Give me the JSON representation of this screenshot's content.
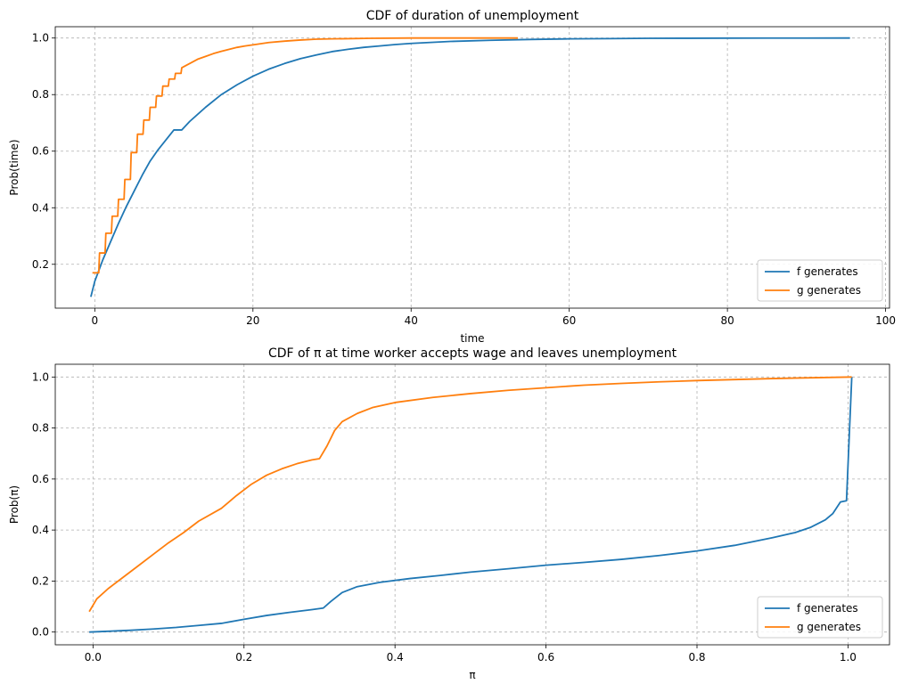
{
  "chart_data": [
    {
      "type": "line",
      "title": "CDF of duration of unemployment",
      "xlabel": "time",
      "ylabel": "Prob(time)",
      "xlim": [
        -5,
        100.5
      ],
      "ylim": [
        0.045,
        1.04
      ],
      "xticks": [
        0,
        20,
        40,
        60,
        80,
        100
      ],
      "yticks": [
        0.2,
        0.4,
        0.6,
        0.8,
        1.0
      ],
      "xtick_labels": [
        "0",
        "20",
        "40",
        "60",
        "80",
        "100"
      ],
      "ytick_labels": [
        "0.2",
        "0.4",
        "0.6",
        "0.8",
        "1.0"
      ],
      "grid": true,
      "legend": "lower-right",
      "series": [
        {
          "name": "f generates",
          "color": "#1f77b4",
          "x": [
            -0.5,
            0,
            1,
            2,
            3,
            4,
            5,
            6,
            7,
            8,
            9,
            10,
            11,
            12,
            14,
            16,
            18,
            20,
            22,
            24,
            26,
            28,
            30,
            32,
            34,
            36,
            38,
            40,
            45,
            50,
            55,
            60,
            65,
            70,
            75,
            80,
            85,
            90,
            95.5
          ],
          "y": [
            0.085,
            0.14,
            0.215,
            0.28,
            0.345,
            0.405,
            0.46,
            0.515,
            0.565,
            0.605,
            0.64,
            0.675,
            0.675,
            0.705,
            0.755,
            0.8,
            0.835,
            0.865,
            0.89,
            0.91,
            0.927,
            0.94,
            0.952,
            0.96,
            0.967,
            0.972,
            0.977,
            0.981,
            0.988,
            0.992,
            0.995,
            0.997,
            0.998,
            0.999,
            0.9993,
            0.9996,
            0.9998,
            0.9999,
            1.0
          ]
        },
        {
          "name": "g generates",
          "color": "#ff7f0e",
          "x": [
            -0.3,
            0.5,
            0.6,
            1.3,
            1.4,
            2.1,
            2.2,
            2.9,
            3.0,
            3.7,
            3.8,
            4.5,
            4.6,
            5.3,
            5.4,
            6.1,
            6.2,
            6.9,
            7.0,
            7.7,
            7.8,
            8.5,
            8.6,
            9.3,
            9.4,
            10.1,
            10.2,
            10.9,
            11.0,
            12,
            13,
            14,
            15,
            16,
            17,
            18,
            19,
            20,
            22,
            24,
            26,
            28,
            30,
            35,
            40,
            45,
            53.5
          ],
          "y": [
            0.17,
            0.17,
            0.24,
            0.24,
            0.31,
            0.31,
            0.37,
            0.37,
            0.43,
            0.43,
            0.5,
            0.5,
            0.595,
            0.595,
            0.66,
            0.66,
            0.71,
            0.71,
            0.755,
            0.755,
            0.795,
            0.795,
            0.83,
            0.83,
            0.855,
            0.855,
            0.875,
            0.875,
            0.895,
            0.91,
            0.925,
            0.935,
            0.945,
            0.953,
            0.96,
            0.967,
            0.972,
            0.976,
            0.984,
            0.989,
            0.993,
            0.996,
            0.997,
            0.999,
            1.0,
            1.0,
            1.0
          ]
        }
      ]
    },
    {
      "type": "line",
      "title": "CDF of π at time worker accepts wage and leaves unemployment",
      "xlabel": "π",
      "ylabel": "Prob(π)",
      "xlim": [
        -0.05,
        1.055
      ],
      "ylim": [
        -0.05,
        1.05
      ],
      "xticks": [
        0.0,
        0.2,
        0.4,
        0.6,
        0.8,
        1.0
      ],
      "yticks": [
        0.0,
        0.2,
        0.4,
        0.6,
        0.8,
        1.0
      ],
      "xtick_labels": [
        "0.0",
        "0.2",
        "0.4",
        "0.6",
        "0.8",
        "1.0"
      ],
      "ytick_labels": [
        "0.0",
        "0.2",
        "0.4",
        "0.6",
        "0.8",
        "1.0"
      ],
      "grid": true,
      "legend": "lower-right",
      "series": [
        {
          "name": "f generates",
          "color": "#1f77b4",
          "x": [
            -0.005,
            0.02,
            0.05,
            0.08,
            0.11,
            0.14,
            0.17,
            0.2,
            0.23,
            0.26,
            0.29,
            0.305,
            0.315,
            0.33,
            0.35,
            0.38,
            0.42,
            0.46,
            0.5,
            0.55,
            0.6,
            0.65,
            0.7,
            0.75,
            0.8,
            0.85,
            0.9,
            0.93,
            0.95,
            0.97,
            0.98,
            0.99,
            0.998,
            1.005
          ],
          "y": [
            0.0,
            0.003,
            0.007,
            0.012,
            0.018,
            0.026,
            0.034,
            0.05,
            0.065,
            0.077,
            0.088,
            0.094,
            0.12,
            0.155,
            0.178,
            0.195,
            0.21,
            0.222,
            0.235,
            0.248,
            0.262,
            0.273,
            0.285,
            0.3,
            0.318,
            0.34,
            0.37,
            0.39,
            0.41,
            0.44,
            0.465,
            0.51,
            0.515,
            1.0
          ]
        },
        {
          "name": "g generates",
          "color": "#ff7f0e",
          "x": [
            -0.005,
            0.005,
            0.02,
            0.04,
            0.06,
            0.08,
            0.1,
            0.12,
            0.14,
            0.17,
            0.19,
            0.21,
            0.23,
            0.25,
            0.27,
            0.29,
            0.3,
            0.31,
            0.32,
            0.33,
            0.35,
            0.37,
            0.4,
            0.45,
            0.5,
            0.55,
            0.6,
            0.65,
            0.7,
            0.75,
            0.8,
            0.85,
            0.9,
            0.95,
            1.005
          ],
          "y": [
            0.08,
            0.13,
            0.17,
            0.215,
            0.26,
            0.305,
            0.35,
            0.39,
            0.435,
            0.485,
            0.535,
            0.58,
            0.615,
            0.64,
            0.66,
            0.675,
            0.68,
            0.73,
            0.79,
            0.825,
            0.857,
            0.88,
            0.9,
            0.92,
            0.935,
            0.948,
            0.958,
            0.968,
            0.975,
            0.981,
            0.986,
            0.99,
            0.994,
            0.997,
            1.0
          ]
        }
      ]
    }
  ]
}
